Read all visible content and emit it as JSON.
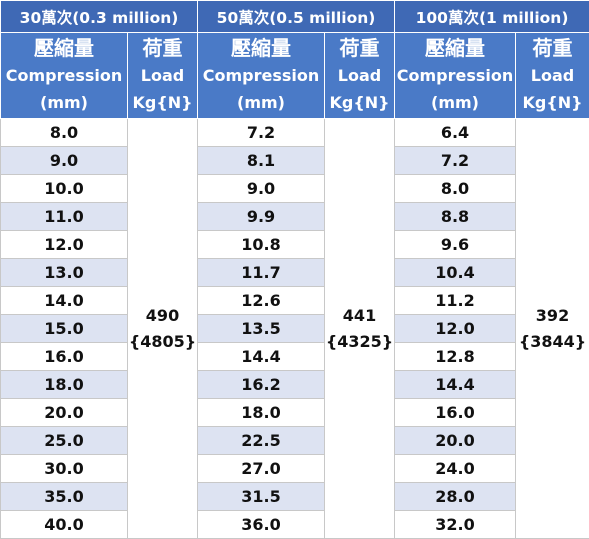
{
  "groups": [
    {
      "title": "30萬次(0.3 million)",
      "compression_header": [
        "壓縮量",
        "Compression",
        "(mm)"
      ],
      "load_header": [
        "荷重",
        "Load",
        "Kg{N}"
      ],
      "compression": [
        "8.0",
        "9.0",
        "10.0",
        "11.0",
        "12.0",
        "13.0",
        "14.0",
        "15.0",
        "16.0",
        "18.0",
        "20.0",
        "25.0",
        "30.0",
        "35.0",
        "40.0"
      ],
      "load": [
        "490",
        "{4805}"
      ]
    },
    {
      "title": "50萬次(0.5 million)",
      "compression_header": [
        "壓縮量",
        "Compression",
        "(mm)"
      ],
      "load_header": [
        "荷重",
        "Load",
        "Kg{N}"
      ],
      "compression": [
        "7.2",
        "8.1",
        "9.0",
        "9.9",
        "10.8",
        "11.7",
        "12.6",
        "13.5",
        "14.4",
        "16.2",
        "18.0",
        "22.5",
        "27.0",
        "31.5",
        "36.0"
      ],
      "load": [
        "441",
        "{4325}"
      ]
    },
    {
      "title": "100萬次(1 million)",
      "compression_header": [
        "壓縮量",
        "Compression",
        "(mm)"
      ],
      "load_header": [
        "荷重",
        "Load",
        "Kg{N}"
      ],
      "compression": [
        "6.4",
        "7.2",
        "8.0",
        "8.8",
        "9.6",
        "10.4",
        "11.2",
        "12.0",
        "12.8",
        "14.4",
        "16.0",
        "20.0",
        "24.0",
        "28.0",
        "32.0"
      ],
      "load": [
        "392",
        "{3844}"
      ]
    }
  ]
}
